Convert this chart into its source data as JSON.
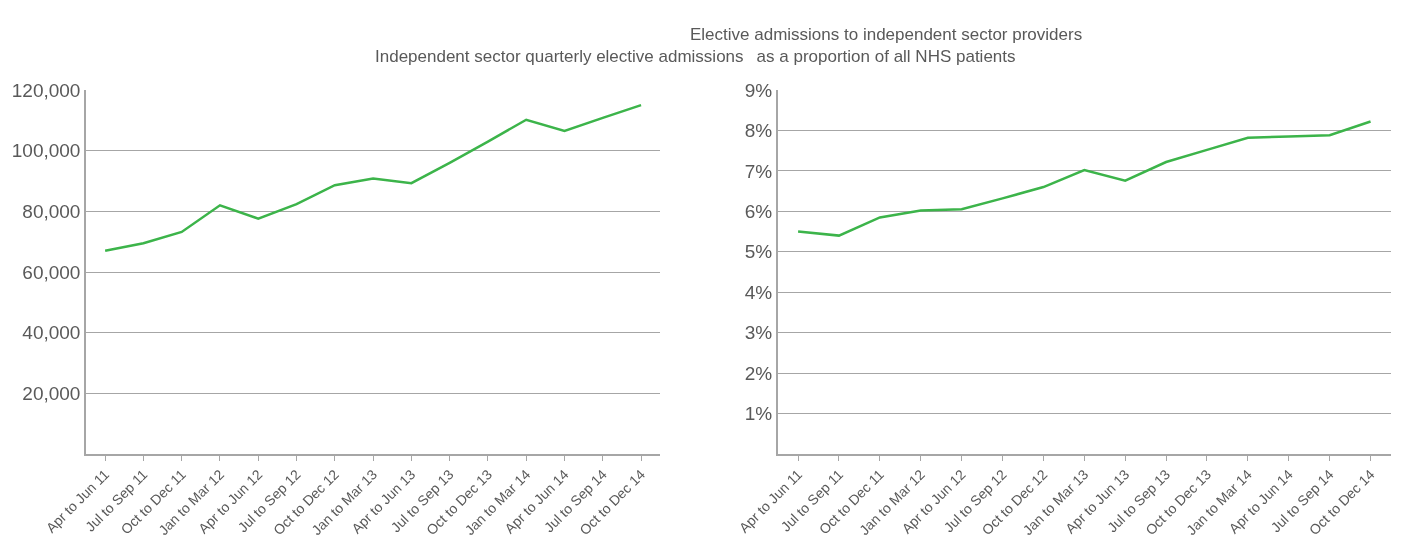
{
  "chart_data": [
    {
      "type": "line",
      "title": "Independent sector quarterly elective admissions",
      "categories": [
        "Apr to Jun 11",
        "Jul to Sep 11",
        "Oct to Dec 11",
        "Jan to Mar 12",
        "Apr to Jun 12",
        "Jul to Sep 12",
        "Oct to Dec 12",
        "Jan to Mar 13",
        "Apr to Jun 13",
        "Jul to Sep 13",
        "Oct to Dec 13",
        "Jan to Mar 14",
        "Apr to Jun 14",
        "Jul to Sep 14",
        "Oct to Dec 14"
      ],
      "series": [
        {
          "color": "#3cb44a",
          "values": [
            67000,
            69500,
            73200,
            82000,
            77600,
            82400,
            88600,
            90800,
            89300,
            96000,
            103000,
            110200,
            106500,
            110800,
            115000
          ]
        }
      ],
      "ylim": [
        0,
        120000
      ],
      "yticks": [
        {
          "value": 0,
          "label": null
        },
        {
          "value": 20000,
          "label": "20,000"
        },
        {
          "value": 40000,
          "label": "40,000"
        },
        {
          "value": 60000,
          "label": "60,000"
        },
        {
          "value": 80000,
          "label": "80,000"
        },
        {
          "value": 100000,
          "label": "100,000"
        },
        {
          "value": 120000,
          "label": "120,000"
        }
      ],
      "grid": "y",
      "marker": "none",
      "line_style": "solid"
    },
    {
      "type": "line",
      "title": "Elective admissions to independent sector providers\nas a proportion of all NHS patients",
      "categories": [
        "Apr to Jun 11",
        "Jul to Sep 11",
        "Oct to Dec 11",
        "Jan to Mar 12",
        "Apr to Jun 12",
        "Jul to Sep 12",
        "Oct to Dec 12",
        "Jan to Mar 13",
        "Apr to Jun 13",
        "Jul to Sep 13",
        "Oct to Dec 13",
        "Jan to Mar 14",
        "Apr to Jun 14",
        "Jul to Sep 14",
        "Oct to Dec 14"
      ],
      "series": [
        {
          "color": "#3cb44a",
          "values": [
            5.5,
            5.4,
            5.85,
            6.02,
            6.05,
            6.32,
            6.6,
            7.02,
            6.76,
            7.22,
            7.52,
            7.82,
            7.85,
            7.88,
            8.22
          ]
        }
      ],
      "ylim": [
        0,
        9
      ],
      "yticks": [
        {
          "value": 0,
          "label": null
        },
        {
          "value": 1,
          "label": "1%"
        },
        {
          "value": 2,
          "label": "2%"
        },
        {
          "value": 3,
          "label": "3%"
        },
        {
          "value": 4,
          "label": "4%"
        },
        {
          "value": 5,
          "label": "5%"
        },
        {
          "value": 6,
          "label": "6%"
        },
        {
          "value": 7,
          "label": "7%"
        },
        {
          "value": 8,
          "label": "8%"
        },
        {
          "value": 9,
          "label": "9%"
        }
      ],
      "grid": "y",
      "marker": "none",
      "line_style": "solid"
    }
  ]
}
